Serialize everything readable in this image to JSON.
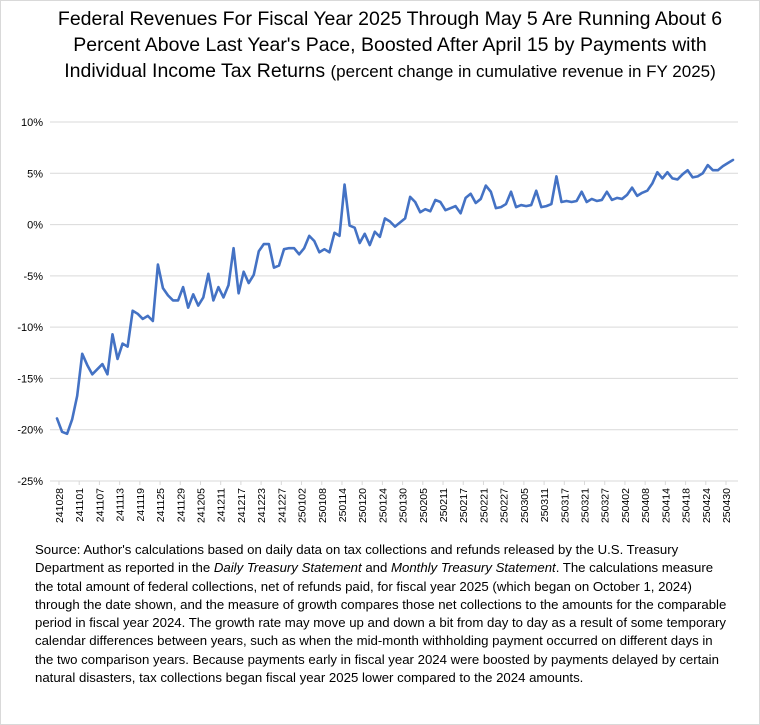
{
  "chart_data": {
    "type": "line",
    "title_main": "Federal Revenues For Fiscal Year 2025 Through May 5 Are Running About 6 Percent Above Last Year's Pace, Boosted After April 15 by Payments with Individual Income Tax Returns",
    "title_sub": "(percent change in cumulative revenue in FY 2025)",
    "ylim": [
      -25,
      10
    ],
    "y_ticks": [
      "10%",
      "5%",
      "0%",
      "-5%",
      "-10%",
      "-15%",
      "-20%",
      "-25%"
    ],
    "y_tick_values": [
      10,
      5,
      0,
      -5,
      -10,
      -15,
      -20,
      -25
    ],
    "x_tick_labels": [
      "241028",
      "241101",
      "241107",
      "241113",
      "241119",
      "241125",
      "241129",
      "241205",
      "241211",
      "241217",
      "241223",
      "241227",
      "250102",
      "250108",
      "250114",
      "250120",
      "250124",
      "250130",
      "250205",
      "250211",
      "250217",
      "250221",
      "250227",
      "250305",
      "250311",
      "250317",
      "250321",
      "250327",
      "250402",
      "250408",
      "250414",
      "250418",
      "250424",
      "250430"
    ],
    "grid": true,
    "line_color": "#4472c4",
    "series": [
      {
        "values": [
          -18.9,
          -20.2,
          -20.4,
          -19.0,
          -16.7,
          -12.6,
          -13.7,
          -14.6,
          -14.1,
          -13.6,
          -14.6,
          -10.7,
          -13.1,
          -11.6,
          -11.9,
          -8.4,
          -8.7,
          -9.2,
          -8.9,
          -9.4,
          -3.9,
          -6.2,
          -6.9,
          -7.4,
          -7.4,
          -6.1,
          -8.1,
          -6.8,
          -7.9,
          -7.1,
          -4.8,
          -7.4,
          -6.1,
          -7.1,
          -5.9,
          -2.3,
          -6.7,
          -4.6,
          -5.7,
          -4.9,
          -2.6,
          -1.9,
          -1.9,
          -4.2,
          -4.0,
          -2.4,
          -2.3,
          -2.3,
          -2.9,
          -2.3,
          -1.1,
          -1.6,
          -2.7,
          -2.4,
          -2.7,
          -0.8,
          -1.1,
          3.9,
          -0.1,
          -0.3,
          -1.8,
          -0.9,
          -2.0,
          -0.7,
          -1.2,
          0.6,
          0.3,
          -0.2,
          0.2,
          0.6,
          2.7,
          2.2,
          1.2,
          1.5,
          1.3,
          2.4,
          2.2,
          1.4,
          1.6,
          1.8,
          1.1,
          2.6,
          3.0,
          2.1,
          2.5,
          3.8,
          3.2,
          1.6,
          1.7,
          2.0,
          3.2,
          1.7,
          1.9,
          1.8,
          1.9,
          3.3,
          1.7,
          1.8,
          2.0,
          4.7,
          2.2,
          2.3,
          2.2,
          2.3,
          3.2,
          2.2,
          2.5,
          2.3,
          2.4,
          3.2,
          2.4,
          2.6,
          2.5,
          2.9,
          3.6,
          2.8,
          3.1,
          3.3,
          4.0,
          5.1,
          4.5,
          5.1,
          4.5,
          4.4,
          4.9,
          5.3,
          4.6,
          4.7,
          5.0,
          5.8,
          5.3,
          5.3,
          5.7,
          6.0,
          6.3
        ]
      }
    ]
  },
  "source": {
    "prefix": "Source: Author's calculations based on daily data on tax collections and refunds released by the U.S. Treasury Department as reported in the ",
    "pub1": "Daily Treasury Statement",
    "and": " and ",
    "pub2": "Monthly Treasury Statement",
    "rest": ". The calculations measure the total amount of federal collections, net of refunds paid, for fiscal year 2025 (which began on October 1, 2024) through the date shown, and the measure of growth compares those net collections to the amounts for the comparable period in fiscal year 2024. The growth rate may move up and down a bit from day to day as a result of some temporary calendar differences between years, such as when the mid-month withholding payment occurred on different days in the two comparison years. Because payments early in fiscal year 2024 were boosted by payments delayed by certain natural disasters, tax collections began fiscal year 2025 lower compared to the 2024 amounts."
  }
}
